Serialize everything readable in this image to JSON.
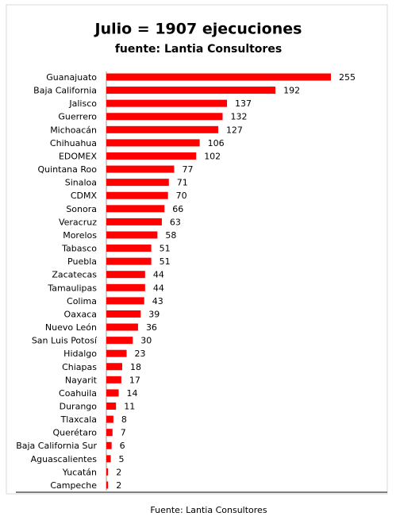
{
  "chart_data": {
    "type": "bar",
    "orientation": "horizontal",
    "title": "Julio = 1907 ejecuciones",
    "subtitle": "fuente: Lantia Consultores",
    "source": "Fuente: Lantia Consultores",
    "categories": [
      "Guanajuato",
      "Baja California",
      "Jalisco",
      "Guerrero",
      "Michoacán",
      "Chihuahua",
      "EDOMEX",
      "Quintana Roo",
      "Sinaloa",
      "CDMX",
      "Sonora",
      "Veracruz",
      "Morelos",
      "Tabasco",
      "Puebla",
      "Zacatecas",
      "Tamaulipas",
      "Colima",
      "Oaxaca",
      "Nuevo León",
      "San Luis Potosí",
      "Hidalgo",
      "Chiapas",
      "Nayarit",
      "Coahuila",
      "Durango",
      "Tlaxcala",
      "Querétaro",
      "Baja California Sur",
      "Aguascalientes",
      "Yucatán",
      "Campeche"
    ],
    "values": [
      255,
      192,
      137,
      132,
      127,
      106,
      102,
      77,
      71,
      70,
      66,
      63,
      58,
      51,
      51,
      44,
      44,
      43,
      39,
      36,
      30,
      23,
      18,
      17,
      14,
      11,
      8,
      7,
      6,
      5,
      2,
      2
    ],
    "color": "#ff0000"
  }
}
